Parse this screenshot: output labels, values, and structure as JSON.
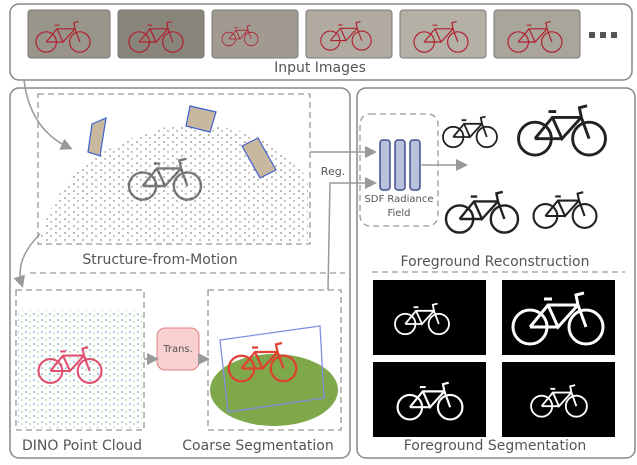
{
  "input": {
    "label": "Input Images"
  },
  "sfm": {
    "label": "Structure-from-Motion",
    "reg": "Reg."
  },
  "sdf": {
    "label": "SDF Radiance Field"
  },
  "reconstruction": {
    "label": "Foreground Reconstruction"
  },
  "dino": {
    "label": "DINO Point Cloud"
  },
  "trans": {
    "label": "Trans."
  },
  "coarse": {
    "label": "Coarse Segmentation"
  },
  "segmentation": {
    "label": "Foreground Segmentation"
  }
}
